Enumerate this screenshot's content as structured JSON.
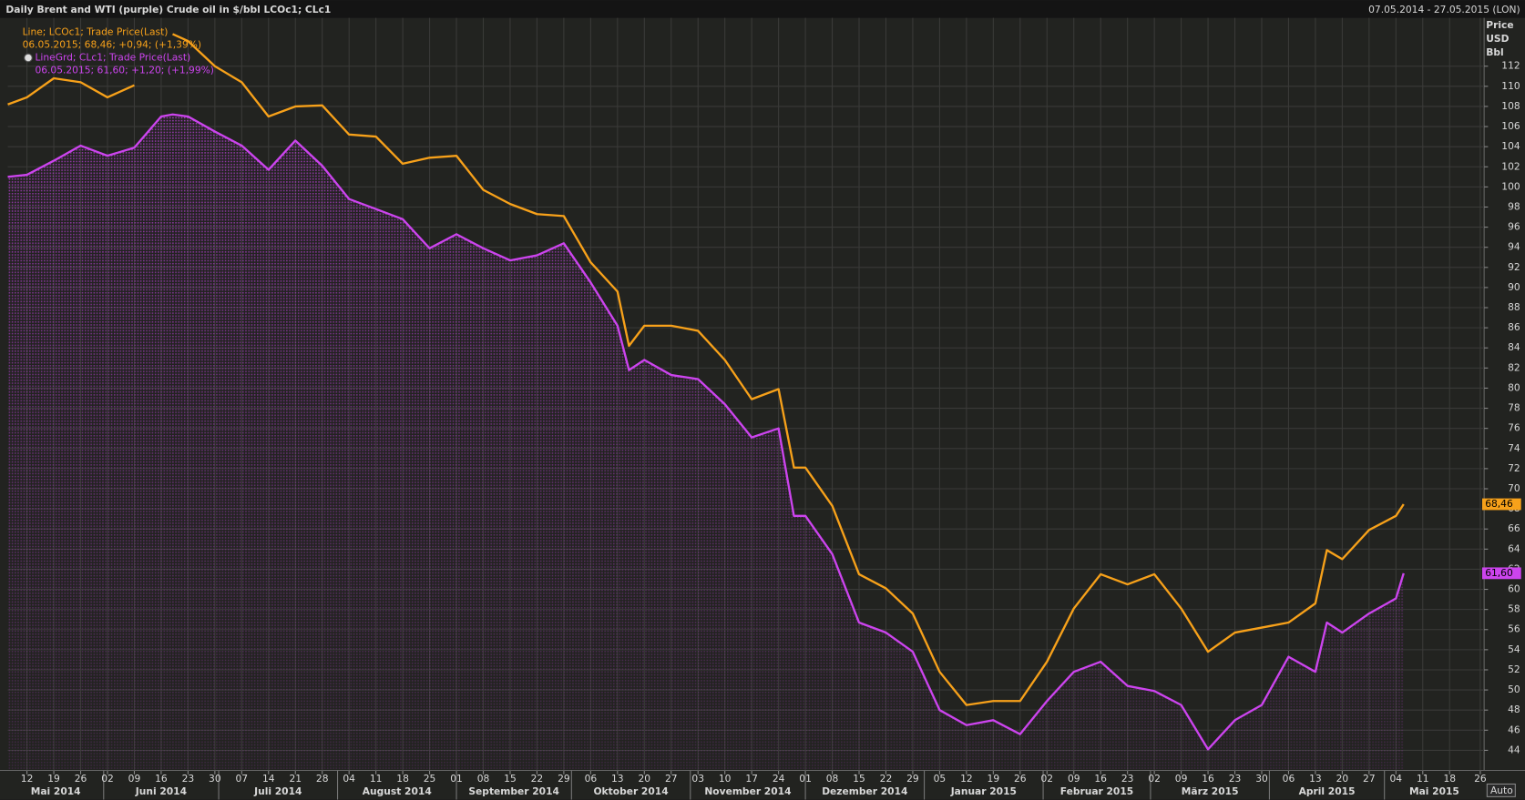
{
  "header": {
    "title": "Daily Brent and WTI (purple) Crude oil in $/bbl LCOc1; CLc1",
    "range": "07.05.2014 - 27.05.2015 (LON)"
  },
  "chart_data": {
    "type": "line",
    "x": [
      "2014-05-07",
      "2014-05-12",
      "2014-05-19",
      "2014-05-26",
      "2014-06-02",
      "2014-06-09",
      "2014-06-16",
      "2014-06-19",
      "2014-06-23",
      "2014-06-30",
      "2014-07-07",
      "2014-07-14",
      "2014-07-21",
      "2014-07-28",
      "2014-08-04",
      "2014-08-11",
      "2014-08-18",
      "2014-08-25",
      "2014-09-01",
      "2014-09-08",
      "2014-09-15",
      "2014-09-22",
      "2014-09-29",
      "2014-10-06",
      "2014-10-13",
      "2014-10-16",
      "2014-10-20",
      "2014-10-27",
      "2014-11-03",
      "2014-11-10",
      "2014-11-17",
      "2014-11-24",
      "2014-11-28",
      "2014-12-01",
      "2014-12-08",
      "2014-12-15",
      "2014-12-22",
      "2014-12-29",
      "2015-01-05",
      "2015-01-12",
      "2015-01-19",
      "2015-01-26",
      "2015-02-02",
      "2015-02-09",
      "2015-02-16",
      "2015-02-23",
      "2015-03-02",
      "2015-03-09",
      "2015-03-16",
      "2015-03-23",
      "2015-03-30",
      "2015-04-06",
      "2015-04-13",
      "2015-04-16",
      "2015-04-20",
      "2015-04-27",
      "2015-05-04",
      "2015-05-06"
    ],
    "series": [
      {
        "name": "Line; LCOc1; Trade Price(Last)",
        "detail": "06.05.2015; 68,46; +0,94; (+1,39%)",
        "color": "#f7a11a",
        "area": false,
        "values": [
          108.2,
          108.9,
          110.8,
          110.4,
          108.9,
          110.1,
          null,
          115.2,
          114.5,
          112,
          110.4,
          107,
          108,
          108.1,
          105.2,
          105,
          102.3,
          102.9,
          103.1,
          99.7,
          98.3,
          97.3,
          97.1,
          92.5,
          89.6,
          84.2,
          86.2,
          86.2,
          85.7,
          82.8,
          78.9,
          79.9,
          72.1,
          72.1,
          68.3,
          61.5,
          60.1,
          57.6,
          51.8,
          48.5,
          48.9,
          48.9,
          52.8,
          58.1,
          61.5,
          60.5,
          61.5,
          58.1,
          53.8,
          55.7,
          56.2,
          56.7,
          58.6,
          63.9,
          63,
          65.9,
          67.3,
          68.46
        ],
        "value_labels": [
          null,
          null,
          null,
          null,
          null,
          null,
          null,
          null,
          null,
          null,
          null,
          null,
          null,
          null,
          null,
          null,
          null,
          null,
          null,
          null,
          null,
          null,
          null,
          null,
          null,
          null,
          null,
          null,
          null,
          null,
          null,
          null,
          null,
          null,
          null,
          null,
          null,
          null,
          null,
          null,
          null,
          null,
          null,
          null,
          null,
          null,
          null,
          null,
          null,
          null,
          null,
          null,
          null,
          null,
          null,
          null,
          null,
          "68,46"
        ]
      },
      {
        "name": "LineGrd; CLc1; Trade Price(Last)",
        "detail": "06.05.2015; 61,60; +1,20; (+1,99%)",
        "color": "#cc44ee",
        "area": true,
        "values": [
          101,
          101.2,
          102.6,
          104.1,
          103.1,
          103.9,
          107,
          107.2,
          107,
          105.5,
          104.1,
          101.7,
          104.6,
          102.1,
          98.8,
          97.8,
          96.8,
          93.9,
          95.3,
          93.9,
          92.7,
          93.2,
          94.4,
          90.5,
          86.2,
          81.8,
          82.8,
          81.3,
          80.9,
          78.4,
          75.1,
          76,
          67.3,
          67.3,
          63.5,
          56.7,
          55.7,
          53.8,
          48,
          46.5,
          47,
          45.6,
          48.9,
          51.8,
          52.8,
          50.4,
          49.9,
          48.5,
          44.1,
          47,
          48.5,
          53.3,
          51.8,
          56.7,
          55.7,
          57.6,
          59.1,
          61.6
        ],
        "value_labels": [
          null,
          null,
          null,
          null,
          null,
          null,
          null,
          null,
          null,
          null,
          null,
          null,
          null,
          null,
          null,
          null,
          null,
          null,
          null,
          null,
          null,
          null,
          null,
          null,
          null,
          null,
          null,
          null,
          null,
          null,
          null,
          null,
          null,
          null,
          null,
          null,
          null,
          null,
          null,
          null,
          null,
          null,
          null,
          null,
          null,
          null,
          null,
          null,
          null,
          null,
          null,
          null,
          null,
          null,
          null,
          null,
          null,
          "61,60"
        ]
      }
    ],
    "xlim": [
      "2014-05-07",
      "2015-05-27"
    ],
    "xticks": [
      {
        "value": "2014-05-12",
        "label": "12"
      },
      {
        "value": "2014-05-19",
        "label": "19"
      },
      {
        "value": "2014-05-26",
        "label": "26"
      },
      {
        "value": "2014-06-02",
        "label": "02"
      },
      {
        "value": "2014-06-09",
        "label": "09"
      },
      {
        "value": "2014-06-16",
        "label": "16"
      },
      {
        "value": "2014-06-23",
        "label": "23"
      },
      {
        "value": "2014-06-30",
        "label": "30"
      },
      {
        "value": "2014-07-07",
        "label": "07"
      },
      {
        "value": "2014-07-14",
        "label": "14"
      },
      {
        "value": "2014-07-21",
        "label": "21"
      },
      {
        "value": "2014-07-28",
        "label": "28"
      },
      {
        "value": "2014-08-04",
        "label": "04"
      },
      {
        "value": "2014-08-11",
        "label": "11"
      },
      {
        "value": "2014-08-18",
        "label": "18"
      },
      {
        "value": "2014-08-25",
        "label": "25"
      },
      {
        "value": "2014-09-01",
        "label": "01"
      },
      {
        "value": "2014-09-08",
        "label": "08"
      },
      {
        "value": "2014-09-15",
        "label": "15"
      },
      {
        "value": "2014-09-22",
        "label": "22"
      },
      {
        "value": "2014-09-29",
        "label": "29"
      },
      {
        "value": "2014-10-06",
        "label": "06"
      },
      {
        "value": "2014-10-13",
        "label": "13"
      },
      {
        "value": "2014-10-20",
        "label": "20"
      },
      {
        "value": "2014-10-27",
        "label": "27"
      },
      {
        "value": "2014-11-03",
        "label": "03"
      },
      {
        "value": "2014-11-10",
        "label": "10"
      },
      {
        "value": "2014-11-17",
        "label": "17"
      },
      {
        "value": "2014-11-24",
        "label": "24"
      },
      {
        "value": "2014-12-01",
        "label": "01"
      },
      {
        "value": "2014-12-08",
        "label": "08"
      },
      {
        "value": "2014-12-15",
        "label": "15"
      },
      {
        "value": "2014-12-22",
        "label": "22"
      },
      {
        "value": "2014-12-29",
        "label": "29"
      },
      {
        "value": "2015-01-05",
        "label": "05"
      },
      {
        "value": "2015-01-12",
        "label": "12"
      },
      {
        "value": "2015-01-19",
        "label": "19"
      },
      {
        "value": "2015-01-26",
        "label": "26"
      },
      {
        "value": "2015-02-02",
        "label": "02"
      },
      {
        "value": "2015-02-09",
        "label": "09"
      },
      {
        "value": "2015-02-16",
        "label": "16"
      },
      {
        "value": "2015-02-23",
        "label": "23"
      },
      {
        "value": "2015-03-02",
        "label": "02"
      },
      {
        "value": "2015-03-09",
        "label": "09"
      },
      {
        "value": "2015-03-16",
        "label": "16"
      },
      {
        "value": "2015-03-23",
        "label": "23"
      },
      {
        "value": "2015-03-30",
        "label": "30"
      },
      {
        "value": "2015-04-06",
        "label": "06"
      },
      {
        "value": "2015-04-13",
        "label": "13"
      },
      {
        "value": "2015-04-20",
        "label": "20"
      },
      {
        "value": "2015-04-27",
        "label": "27"
      },
      {
        "value": "2015-05-04",
        "label": "04"
      },
      {
        "value": "2015-05-11",
        "label": "11"
      },
      {
        "value": "2015-05-18",
        "label": "18"
      },
      {
        "value": "2015-05-26",
        "label": "26"
      }
    ],
    "month_labels": [
      {
        "value": "2014-05",
        "label": "Mai 2014"
      },
      {
        "value": "2014-06",
        "label": "Juni 2014"
      },
      {
        "value": "2014-07",
        "label": "Juli 2014"
      },
      {
        "value": "2014-08",
        "label": "August 2014"
      },
      {
        "value": "2014-09",
        "label": "September 2014"
      },
      {
        "value": "2014-10",
        "label": "Oktober 2014"
      },
      {
        "value": "2014-11",
        "label": "November 2014"
      },
      {
        "value": "2014-12",
        "label": "Dezember 2014"
      },
      {
        "value": "2015-01",
        "label": "Januar 2015"
      },
      {
        "value": "2015-02",
        "label": "Februar 2015"
      },
      {
        "value": "2015-03",
        "label": "März 2015"
      },
      {
        "value": "2015-04",
        "label": "April 2015"
      },
      {
        "value": "2015-05",
        "label": "Mai 2015"
      }
    ],
    "ylim": [
      42,
      116.8
    ],
    "yticks": [
      44,
      46,
      48,
      50,
      52,
      54,
      56,
      58,
      60,
      62,
      64,
      66,
      68,
      70,
      72,
      74,
      76,
      78,
      80,
      82,
      84,
      86,
      88,
      90,
      92,
      94,
      96,
      98,
      100,
      102,
      104,
      106,
      108,
      110,
      112
    ],
    "y_axis_title": [
      "Price",
      "USD",
      "Bbl"
    ],
    "grid": true,
    "button": "Auto"
  }
}
